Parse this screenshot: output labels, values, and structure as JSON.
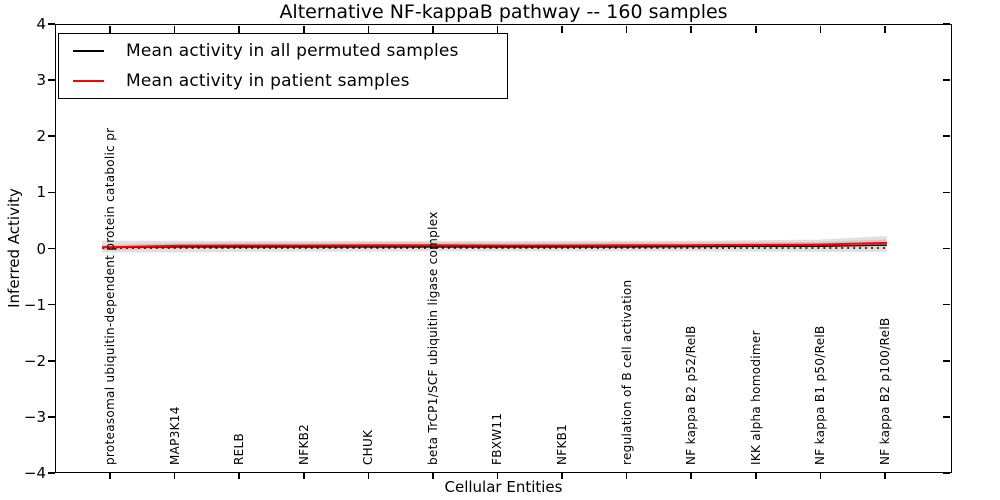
{
  "chart_data": {
    "type": "line",
    "title": "Alternative NF-kappaB pathway -- 160 samples",
    "xlabel": "Cellular Entities",
    "ylabel": "Inferred Activity",
    "ylim": [
      -4,
      4
    ],
    "y_ticks": [
      "4",
      "3",
      "2",
      "1",
      "0",
      "−1",
      "−2",
      "−3",
      "−4"
    ],
    "grid": false,
    "legend_position": "upper left",
    "zero_reference_line": {
      "value": 0,
      "style": "dotted",
      "color": "#000000"
    },
    "categories": [
      "proteasomal ubiquitin-dependent protein catabolic pr",
      "MAP3K14",
      "RELB",
      "NFKB2",
      "CHUK",
      "beta TrCP1/SCF ubiquitin ligase complex",
      "FBXW11",
      "NFKB1",
      "regulation of B cell activation",
      "NF kappa B2 p52/RelB",
      "IKK alpha homodimer",
      "NF kappa B1 p50/RelB",
      "NF kappa B2 p100/RelB"
    ],
    "series": [
      {
        "name": "Mean activity in all permuted samples",
        "color": "#000000",
        "values": [
          0.01,
          0.02,
          0.02,
          0.02,
          0.02,
          0.02,
          0.02,
          0.02,
          0.02,
          0.025,
          0.03,
          0.03,
          0.05
        ]
      },
      {
        "name": "Mean activity in patient samples",
        "color": "#ff0000",
        "values": [
          0.015,
          0.04,
          0.045,
          0.045,
          0.05,
          0.05,
          0.045,
          0.045,
          0.05,
          0.05,
          0.055,
          0.06,
          0.09
        ]
      }
    ],
    "bands": [
      {
        "name": "permuted-confidence-band",
        "color": "rgba(0,0,0,0.12)",
        "upper": [
          0.13,
          0.13,
          0.125,
          0.125,
          0.125,
          0.125,
          0.125,
          0.125,
          0.13,
          0.13,
          0.14,
          0.15,
          0.21
        ],
        "lower": [
          -0.08,
          -0.08,
          -0.07,
          -0.065,
          -0.065,
          -0.06,
          -0.06,
          -0.06,
          -0.06,
          -0.06,
          -0.065,
          -0.07,
          -0.07
        ]
      },
      {
        "name": "patient-confidence-band",
        "color": "rgba(255,0,0,0.14)",
        "upper": [
          0.06,
          0.09,
          0.095,
          0.095,
          0.1,
          0.1,
          0.095,
          0.095,
          0.1,
          0.1,
          0.105,
          0.11,
          0.15
        ],
        "lower": [
          -0.04,
          -0.01,
          -0.005,
          -0.005,
          0.0,
          0.0,
          -0.005,
          -0.005,
          0.0,
          0.0,
          0.005,
          0.01,
          0.03
        ]
      }
    ]
  }
}
